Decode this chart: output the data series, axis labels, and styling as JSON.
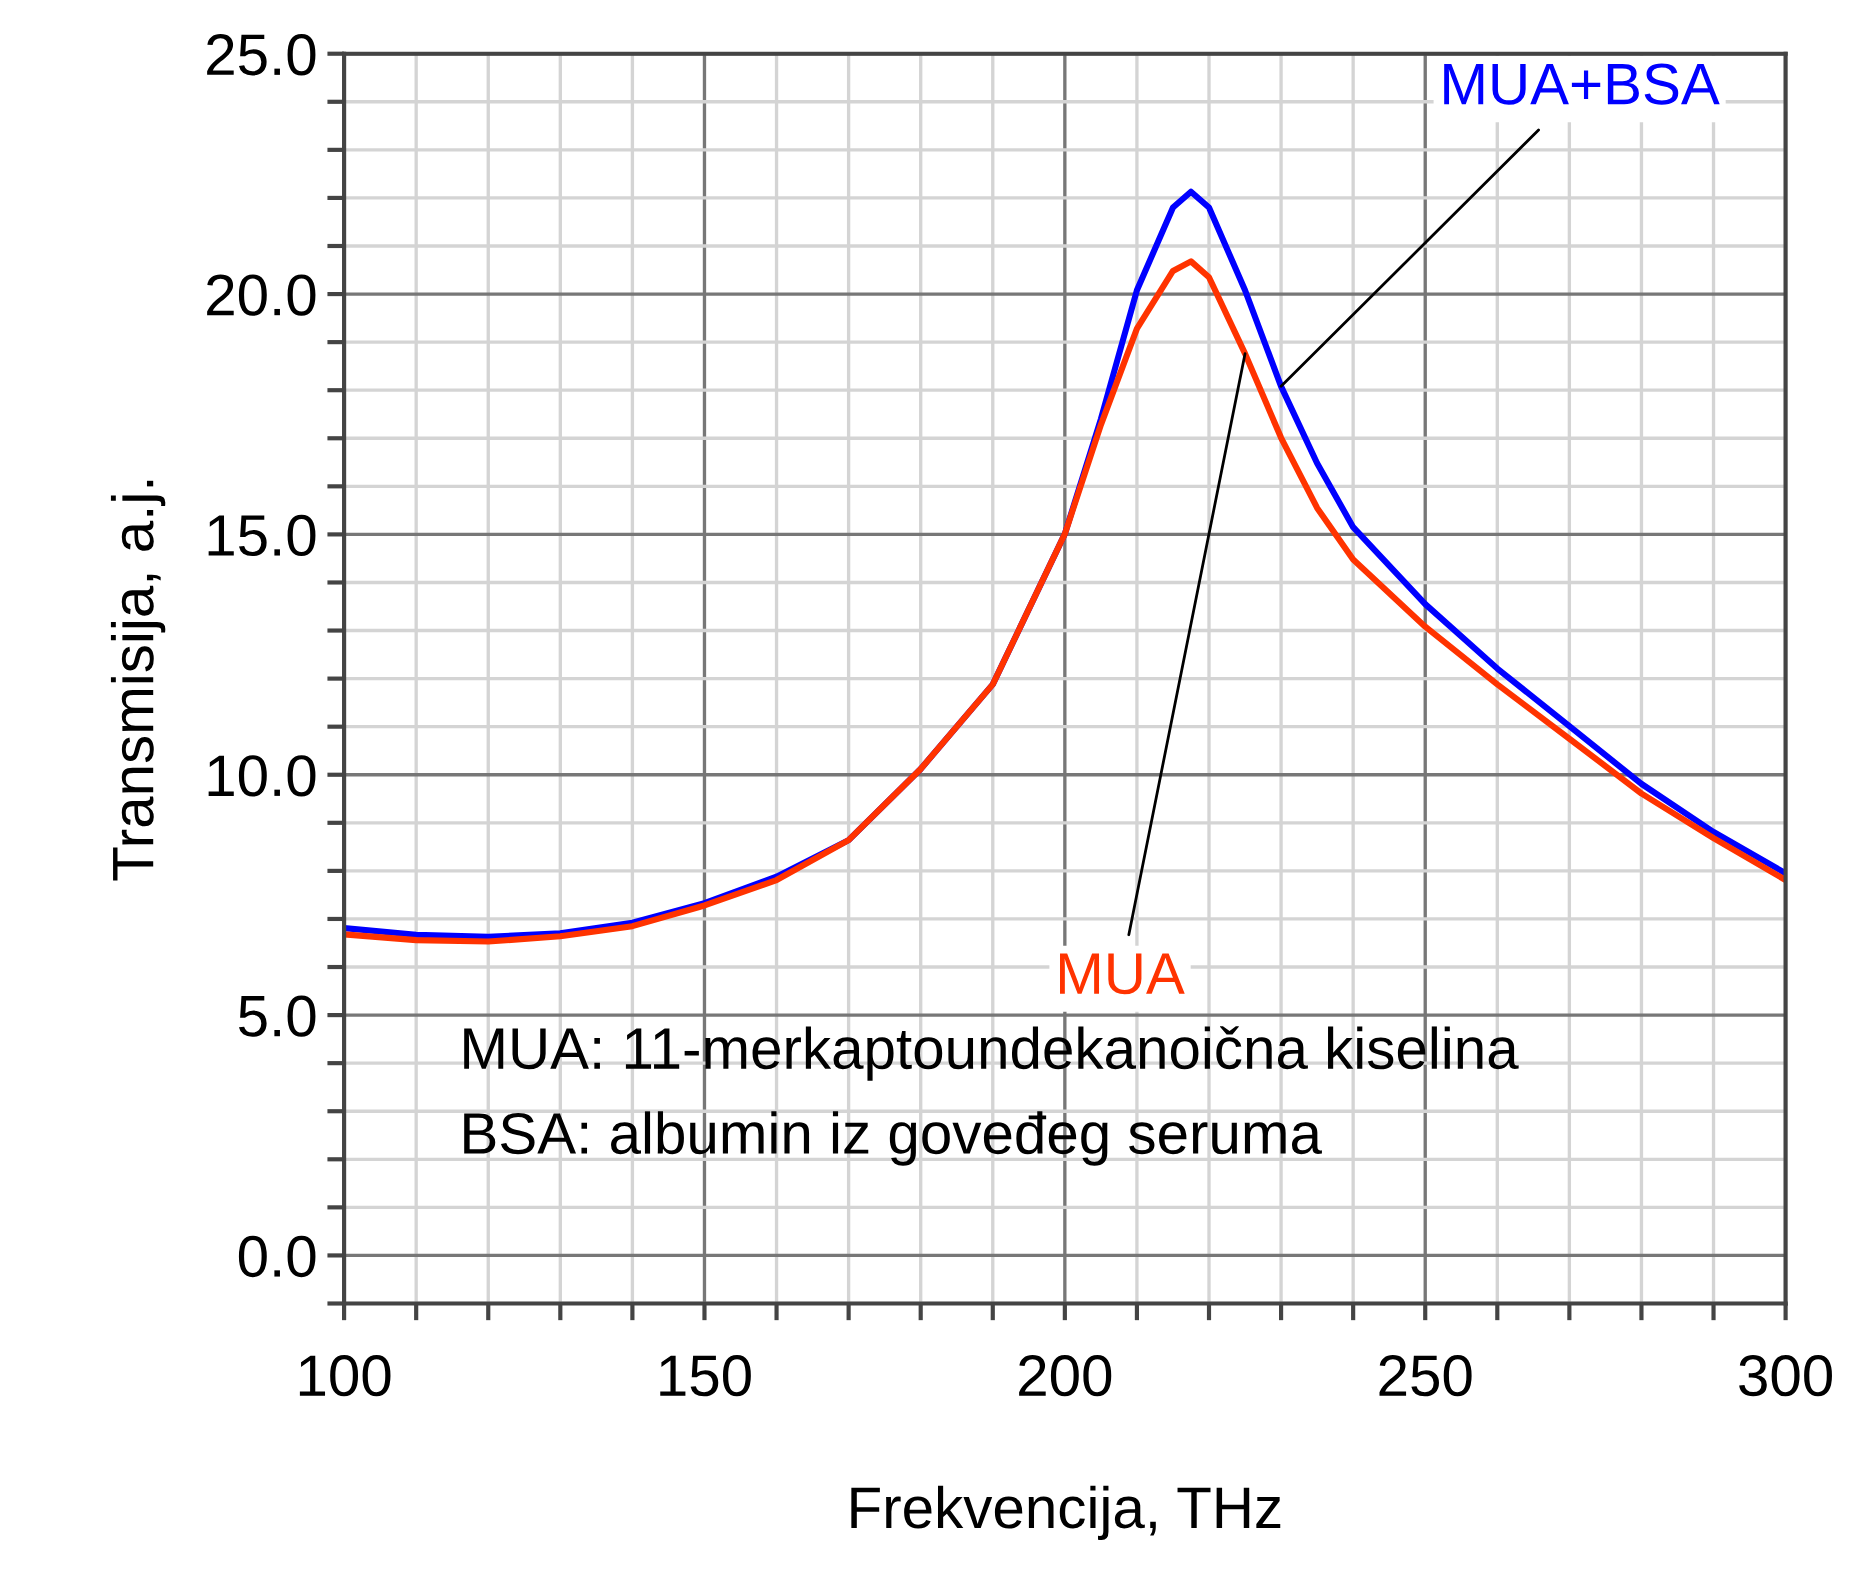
{
  "chart_data": {
    "type": "line",
    "xlabel": "Frekvencija, THz",
    "ylabel": "Transmisija, a.j.",
    "x": [
      100,
      110,
      120,
      130,
      140,
      150,
      160,
      170,
      180,
      190,
      200,
      205,
      210,
      215,
      217.5,
      220,
      225,
      230,
      235,
      240,
      250,
      260,
      270,
      280,
      290,
      300
    ],
    "series": [
      {
        "name": "MUA+BSA",
        "color": "#0000ff",
        "values": [
          6.81,
          6.67,
          6.63,
          6.7,
          6.92,
          7.33,
          7.88,
          8.64,
          10.12,
          11.88,
          15.01,
          17.4,
          20.08,
          21.8,
          22.13,
          21.8,
          20.08,
          18.08,
          16.48,
          15.15,
          13.55,
          12.21,
          11.01,
          9.81,
          8.81,
          7.95
        ]
      },
      {
        "name": "MUA",
        "color": "#ff3300",
        "values": [
          6.68,
          6.56,
          6.53,
          6.64,
          6.85,
          7.28,
          7.81,
          8.64,
          10.12,
          11.88,
          15.01,
          17.28,
          19.28,
          20.48,
          20.68,
          20.35,
          18.76,
          17.01,
          15.55,
          14.48,
          13.08,
          11.88,
          10.75,
          9.61,
          8.68,
          7.81
        ]
      }
    ],
    "xlim": [
      100,
      300
    ],
    "ylim": [
      -1,
      25
    ],
    "xticks": [
      100,
      {
        "value": 110,
        "label": null
      },
      {
        "value": 120,
        "label": null
      },
      {
        "value": 130,
        "label": null
      },
      {
        "value": 140,
        "label": null
      },
      150,
      {
        "value": 160,
        "label": null
      },
      {
        "value": 170,
        "label": null
      },
      {
        "value": 180,
        "label": null
      },
      {
        "value": 190,
        "label": null
      },
      200,
      {
        "value": 210,
        "label": null
      },
      {
        "value": 220,
        "label": null
      },
      {
        "value": 230,
        "label": null
      },
      {
        "value": 240,
        "label": null
      },
      250,
      {
        "value": 260,
        "label": null
      },
      {
        "value": 270,
        "label": null
      },
      {
        "value": 280,
        "label": null
      },
      {
        "value": 290,
        "label": null
      },
      300
    ],
    "yticks": [
      {
        "value": -1,
        "label": null
      },
      {
        "value": 0,
        "label": "0.0"
      },
      {
        "value": 1,
        "label": null
      },
      {
        "value": 2,
        "label": null
      },
      {
        "value": 3,
        "label": null
      },
      {
        "value": 4,
        "label": null
      },
      {
        "value": 5,
        "label": "5.0"
      },
      {
        "value": 6,
        "label": null
      },
      {
        "value": 7,
        "label": null
      },
      {
        "value": 8,
        "label": null
      },
      {
        "value": 9,
        "label": null
      },
      {
        "value": 10,
        "label": "10.0"
      },
      {
        "value": 11,
        "label": null
      },
      {
        "value": 12,
        "label": null
      },
      {
        "value": 13,
        "label": null
      },
      {
        "value": 14,
        "label": null
      },
      {
        "value": 15,
        "label": "15.0"
      },
      {
        "value": 16,
        "label": null
      },
      {
        "value": 17,
        "label": null
      },
      {
        "value": 18,
        "label": null
      },
      {
        "value": 19,
        "label": null
      },
      {
        "value": 20,
        "label": "20.0"
      },
      {
        "value": 21,
        "label": null
      },
      {
        "value": 22,
        "label": null
      },
      {
        "value": 23,
        "label": null
      },
      {
        "value": 24,
        "label": null
      },
      {
        "value": 25,
        "label": "25.0"
      }
    ],
    "grid": true,
    "annotations": [
      "MUA: 11-merkaptoundekanoična kiselina",
      "BSA: albumin iz goveđeg seruma"
    ]
  }
}
